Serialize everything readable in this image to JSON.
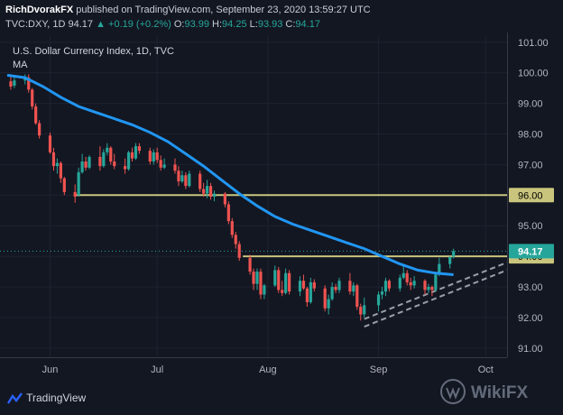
{
  "header": {
    "author": "RichDvorakFX",
    "published": "published on TradingView.com, September 23, 2020 13:59:27 UTC",
    "symbol": "TVC:DXY, 1D",
    "last": "94.17",
    "change": "+0.19 (+0.2%)",
    "o_label": "O:",
    "o": "93.99",
    "h_label": "H:",
    "h": "94.25",
    "l_label": "L:",
    "l": "93.93",
    "c_label": "C:",
    "c": "94.17"
  },
  "footer": {
    "brand": "TradingView",
    "watermark": "WikiFX"
  },
  "colors": {
    "up": "#26a69a",
    "down": "#ef5350",
    "ma": "#2196f3",
    "level": "#c9c57d",
    "channel": "#9aa0aa",
    "background": "#131722"
  },
  "chart_data": {
    "type": "candlestick",
    "title": "U.S. Dollar Currency Index, 1D, TVC",
    "legend": [
      "MA"
    ],
    "ylim": [
      90.7,
      101.2
    ],
    "y_ticks": [
      "101.00",
      "100.00",
      "99.00",
      "98.00",
      "97.00",
      "96.00",
      "95.00",
      "94.00",
      "93.00",
      "92.00",
      "91.00"
    ],
    "x_ticks": [
      {
        "label": "Jun",
        "day": 12
      },
      {
        "label": "Jul",
        "day": 42
      },
      {
        "label": "Aug",
        "day": 73
      },
      {
        "label": "Sep",
        "day": 104
      },
      {
        "label": "Oct",
        "day": 134
      }
    ],
    "x_range": [
      0,
      140
    ],
    "start_date": "2020-05-21",
    "candles": [
      {
        "d": 1,
        "o": 99.72,
        "h": 99.88,
        "l": 99.45,
        "c": 99.55
      },
      {
        "d": 2,
        "o": 99.58,
        "h": 99.85,
        "l": 99.5,
        "c": 99.75
      },
      {
        "d": 5,
        "o": 99.75,
        "h": 99.95,
        "l": 99.62,
        "c": 99.85
      },
      {
        "d": 6,
        "o": 99.85,
        "h": 99.95,
        "l": 99.35,
        "c": 99.45
      },
      {
        "d": 7,
        "o": 99.45,
        "h": 99.5,
        "l": 98.8,
        "c": 98.9
      },
      {
        "d": 8,
        "o": 98.9,
        "h": 99.0,
        "l": 98.3,
        "c": 98.35
      },
      {
        "d": 9,
        "o": 98.35,
        "h": 98.45,
        "l": 97.85,
        "c": 97.95
      },
      {
        "d": 12,
        "o": 97.95,
        "h": 98.05,
        "l": 97.35,
        "c": 97.4
      },
      {
        "d": 13,
        "o": 97.4,
        "h": 97.55,
        "l": 96.8,
        "c": 96.95
      },
      {
        "d": 14,
        "o": 96.95,
        "h": 97.2,
        "l": 96.7,
        "c": 97.05
      },
      {
        "d": 15,
        "o": 97.05,
        "h": 97.1,
        "l": 96.4,
        "c": 96.55
      },
      {
        "d": 16,
        "o": 96.55,
        "h": 96.6,
        "l": 96.0,
        "c": 96.1
      },
      {
        "d": 19,
        "o": 96.1,
        "h": 96.35,
        "l": 95.75,
        "c": 95.95
      },
      {
        "d": 20,
        "o": 96.0,
        "h": 96.9,
        "l": 95.95,
        "c": 96.75
      },
      {
        "d": 21,
        "o": 96.75,
        "h": 97.35,
        "l": 96.7,
        "c": 97.1
      },
      {
        "d": 22,
        "o": 97.1,
        "h": 97.25,
        "l": 96.8,
        "c": 96.9
      },
      {
        "d": 23,
        "o": 96.9,
        "h": 97.3,
        "l": 96.85,
        "c": 97.25
      },
      {
        "d": 26,
        "o": 97.25,
        "h": 97.6,
        "l": 96.8,
        "c": 96.95
      },
      {
        "d": 27,
        "o": 96.95,
        "h": 97.5,
        "l": 96.9,
        "c": 97.4
      },
      {
        "d": 28,
        "o": 97.4,
        "h": 97.7,
        "l": 97.3,
        "c": 97.55
      },
      {
        "d": 29,
        "o": 97.55,
        "h": 97.6,
        "l": 97.0,
        "c": 97.1
      },
      {
        "d": 30,
        "o": 97.1,
        "h": 97.35,
        "l": 96.85,
        "c": 96.95
      },
      {
        "d": 33,
        "o": 96.95,
        "h": 97.2,
        "l": 96.7,
        "c": 96.85
      },
      {
        "d": 34,
        "o": 96.85,
        "h": 97.45,
        "l": 96.8,
        "c": 97.4
      },
      {
        "d": 35,
        "o": 97.4,
        "h": 97.55,
        "l": 97.1,
        "c": 97.2
      },
      {
        "d": 36,
        "o": 97.2,
        "h": 97.7,
        "l": 97.15,
        "c": 97.6
      },
      {
        "d": 37,
        "o": 97.6,
        "h": 97.7,
        "l": 97.35,
        "c": 97.45
      },
      {
        "d": 40,
        "o": 97.45,
        "h": 97.55,
        "l": 97.0,
        "c": 97.1
      },
      {
        "d": 41,
        "o": 97.1,
        "h": 97.5,
        "l": 97.0,
        "c": 97.4
      },
      {
        "d": 42,
        "o": 97.4,
        "h": 97.55,
        "l": 97.05,
        "c": 97.15
      },
      {
        "d": 43,
        "o": 97.15,
        "h": 97.3,
        "l": 96.8,
        "c": 96.9
      },
      {
        "d": 44,
        "o": 96.9,
        "h": 97.2,
        "l": 96.85,
        "c": 97.0
      },
      {
        "d": 47,
        "o": 97.0,
        "h": 97.2,
        "l": 96.7,
        "c": 96.8
      },
      {
        "d": 48,
        "o": 96.8,
        "h": 96.95,
        "l": 96.3,
        "c": 96.45
      },
      {
        "d": 49,
        "o": 96.45,
        "h": 96.8,
        "l": 96.4,
        "c": 96.65
      },
      {
        "d": 50,
        "o": 96.65,
        "h": 96.75,
        "l": 96.2,
        "c": 96.3
      },
      {
        "d": 51,
        "o": 96.3,
        "h": 96.8,
        "l": 96.25,
        "c": 96.7
      },
      {
        "d": 54,
        "o": 96.7,
        "h": 96.8,
        "l": 96.1,
        "c": 96.2
      },
      {
        "d": 55,
        "o": 96.2,
        "h": 96.4,
        "l": 95.95,
        "c": 96.05
      },
      {
        "d": 56,
        "o": 96.05,
        "h": 96.5,
        "l": 95.9,
        "c": 96.3
      },
      {
        "d": 57,
        "o": 96.3,
        "h": 96.4,
        "l": 95.85,
        "c": 95.95
      },
      {
        "d": 58,
        "o": 95.95,
        "h": 96.15,
        "l": 95.8,
        "c": 96.05
      },
      {
        "d": 61,
        "o": 96.05,
        "h": 96.1,
        "l": 95.6,
        "c": 95.7
      },
      {
        "d": 62,
        "o": 95.7,
        "h": 95.8,
        "l": 95.05,
        "c": 95.15
      },
      {
        "d": 63,
        "o": 95.15,
        "h": 95.25,
        "l": 94.6,
        "c": 94.7
      },
      {
        "d": 64,
        "o": 94.7,
        "h": 94.8,
        "l": 94.25,
        "c": 94.4
      },
      {
        "d": 65,
        "o": 94.4,
        "h": 94.5,
        "l": 93.85,
        "c": 93.95
      },
      {
        "d": 68,
        "o": 93.95,
        "h": 94.05,
        "l": 93.4,
        "c": 93.5
      },
      {
        "d": 69,
        "o": 93.5,
        "h": 93.6,
        "l": 92.9,
        "c": 93.1
      },
      {
        "d": 70,
        "o": 93.1,
        "h": 93.6,
        "l": 92.9,
        "c": 93.5
      },
      {
        "d": 71,
        "o": 93.5,
        "h": 93.6,
        "l": 92.6,
        "c": 92.75
      },
      {
        "d": 72,
        "o": 92.75,
        "h": 93.1,
        "l": 92.6,
        "c": 93.05
      },
      {
        "d": 75,
        "o": 93.05,
        "h": 93.7,
        "l": 93.0,
        "c": 93.55
      },
      {
        "d": 76,
        "o": 93.55,
        "h": 93.65,
        "l": 92.8,
        "c": 92.9
      },
      {
        "d": 77,
        "o": 92.9,
        "h": 93.2,
        "l": 92.7,
        "c": 92.8
      },
      {
        "d": 78,
        "o": 92.8,
        "h": 93.6,
        "l": 92.75,
        "c": 93.45
      },
      {
        "d": 79,
        "o": 93.45,
        "h": 93.55,
        "l": 92.75,
        "c": 92.85
      },
      {
        "d": 82,
        "o": 92.85,
        "h": 93.35,
        "l": 92.7,
        "c": 93.2
      },
      {
        "d": 83,
        "o": 93.2,
        "h": 93.4,
        "l": 92.9,
        "c": 92.95
      },
      {
        "d": 84,
        "o": 92.95,
        "h": 93.0,
        "l": 92.35,
        "c": 92.5
      },
      {
        "d": 85,
        "o": 92.5,
        "h": 93.3,
        "l": 92.45,
        "c": 93.15
      },
      {
        "d": 86,
        "o": 93.15,
        "h": 93.25,
        "l": 92.85,
        "c": 92.95
      },
      {
        "d": 89,
        "o": 92.95,
        "h": 93.05,
        "l": 92.2,
        "c": 92.3
      },
      {
        "d": 90,
        "o": 92.3,
        "h": 92.75,
        "l": 92.1,
        "c": 92.6
      },
      {
        "d": 91,
        "o": 92.6,
        "h": 93.15,
        "l": 92.55,
        "c": 93.0
      },
      {
        "d": 92,
        "o": 93.0,
        "h": 93.1,
        "l": 92.8,
        "c": 92.9
      },
      {
        "d": 93,
        "o": 92.9,
        "h": 93.3,
        "l": 92.8,
        "c": 93.2
      },
      {
        "d": 96,
        "o": 93.2,
        "h": 93.45,
        "l": 92.75,
        "c": 92.85
      },
      {
        "d": 97,
        "o": 92.85,
        "h": 93.15,
        "l": 92.7,
        "c": 93.05
      },
      {
        "d": 98,
        "o": 93.05,
        "h": 93.1,
        "l": 92.25,
        "c": 92.35
      },
      {
        "d": 99,
        "o": 92.35,
        "h": 92.45,
        "l": 91.9,
        "c": 92.1
      },
      {
        "d": 100,
        "o": 92.1,
        "h": 92.65,
        "l": 92.0,
        "c": 92.4
      },
      {
        "d": 104,
        "o": 92.4,
        "h": 92.85,
        "l": 92.2,
        "c": 92.75
      },
      {
        "d": 105,
        "o": 92.75,
        "h": 93.0,
        "l": 92.6,
        "c": 92.85
      },
      {
        "d": 106,
        "o": 92.85,
        "h": 93.3,
        "l": 92.7,
        "c": 93.2
      },
      {
        "d": 107,
        "o": 93.2,
        "h": 93.25,
        "l": 92.85,
        "c": 92.95
      },
      {
        "d": 110,
        "o": 92.95,
        "h": 93.4,
        "l": 92.85,
        "c": 93.3
      },
      {
        "d": 111,
        "o": 93.3,
        "h": 93.7,
        "l": 93.25,
        "c": 93.45
      },
      {
        "d": 112,
        "o": 93.45,
        "h": 93.55,
        "l": 93.05,
        "c": 93.15
      },
      {
        "d": 113,
        "o": 93.15,
        "h": 93.3,
        "l": 92.9,
        "c": 93.05
      },
      {
        "d": 114,
        "o": 93.05,
        "h": 93.35,
        "l": 92.95,
        "c": 93.2
      },
      {
        "d": 117,
        "o": 93.2,
        "h": 93.25,
        "l": 92.75,
        "c": 92.9
      },
      {
        "d": 118,
        "o": 92.9,
        "h": 93.1,
        "l": 92.8,
        "c": 93.0
      },
      {
        "d": 119,
        "o": 93.0,
        "h": 93.05,
        "l": 92.7,
        "c": 92.9
      },
      {
        "d": 120,
        "o": 92.9,
        "h": 93.5,
        "l": 92.85,
        "c": 93.4
      },
      {
        "d": 121,
        "o": 93.4,
        "h": 93.95,
        "l": 93.35,
        "c": 93.75
      },
      {
        "d": 124,
        "o": 93.75,
        "h": 94.0,
        "l": 93.6,
        "c": 93.98
      },
      {
        "d": 125,
        "o": 93.99,
        "h": 94.25,
        "l": 93.93,
        "c": 94.17
      }
    ],
    "ma": [
      [
        0,
        99.92
      ],
      [
        5,
        99.84
      ],
      [
        10,
        99.55
      ],
      [
        15,
        99.2
      ],
      [
        20,
        98.9
      ],
      [
        25,
        98.7
      ],
      [
        30,
        98.5
      ],
      [
        35,
        98.3
      ],
      [
        40,
        98.05
      ],
      [
        45,
        97.75
      ],
      [
        50,
        97.35
      ],
      [
        55,
        96.95
      ],
      [
        60,
        96.5
      ],
      [
        65,
        96.05
      ],
      [
        70,
        95.65
      ],
      [
        75,
        95.3
      ],
      [
        80,
        95.05
      ],
      [
        85,
        94.85
      ],
      [
        90,
        94.65
      ],
      [
        95,
        94.45
      ],
      [
        100,
        94.25
      ],
      [
        105,
        94.0
      ],
      [
        110,
        93.75
      ],
      [
        115,
        93.55
      ],
      [
        120,
        93.45
      ],
      [
        125,
        93.4
      ]
    ],
    "levels": [
      {
        "value": 96.0,
        "label": "96.00",
        "from_day": 19
      },
      {
        "value": 94.0,
        "label": "94.00",
        "from_day": 66
      }
    ],
    "channel": {
      "x1": 100,
      "y1": 91.95,
      "x2": 140,
      "y2": 93.8,
      "y_offset": -0.25
    },
    "last_price": {
      "value": 94.17,
      "label": "94.17"
    }
  }
}
